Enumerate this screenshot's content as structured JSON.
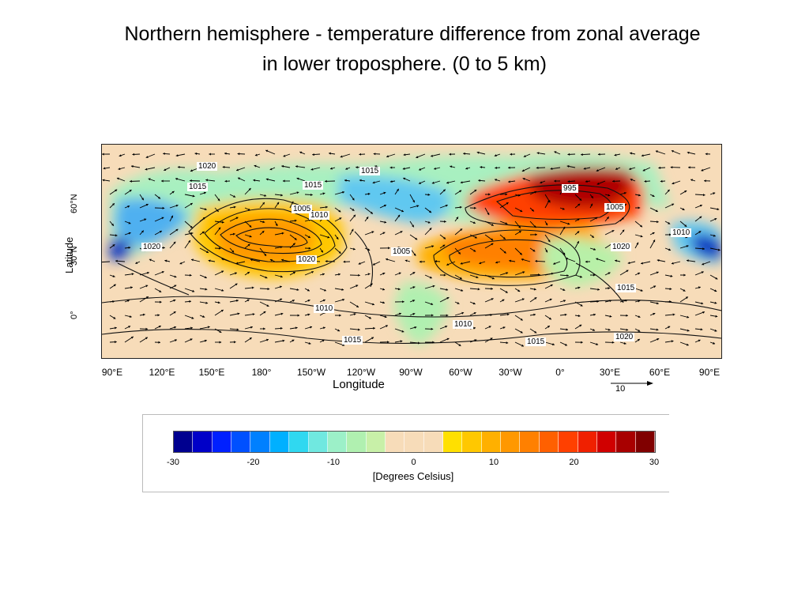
{
  "title": {
    "line1": "Northern hemisphere - temperature difference from zonal average",
    "line2": "in lower troposphere. (0 to 5 km)"
  },
  "map": {
    "ylabel": "Latitude",
    "yticks": [
      "60°N",
      "30°N",
      "0°"
    ],
    "xlabel": "Longitude",
    "xticks": [
      "90°E",
      "120°E",
      "150°E",
      "180°",
      "150°W",
      "120°W",
      "90°W",
      "60°W",
      "30°W",
      "0°",
      "30°E",
      "60°E",
      "90°E"
    ],
    "reference_vector_value": "10",
    "contour_labels": [
      "1020",
      "1015",
      "1015",
      "1005",
      "1010",
      "995",
      "1005",
      "1020",
      "1020",
      "1005",
      "1020",
      "1010",
      "1010",
      "1015",
      "1015",
      "1015",
      "1020",
      "1010",
      "1015"
    ]
  },
  "legend": {
    "ticks": [
      "-30",
      "-20",
      "-10",
      "0",
      "10",
      "20",
      "30"
    ],
    "label": "[Degrees Celsius]",
    "colors": [
      "#00008f",
      "#0000c8",
      "#0020ff",
      "#0050ff",
      "#0080ff",
      "#00b0ff",
      "#30d8f0",
      "#70e8e0",
      "#9cf0c8",
      "#b0f0b0",
      "#c8f0a8",
      "#f7dcb9",
      "#f7dcb9",
      "#f7dcb9",
      "#ffe000",
      "#ffc800",
      "#ffb000",
      "#ff9800",
      "#ff8000",
      "#ff6000",
      "#ff4000",
      "#f02000",
      "#d00000",
      "#a80000",
      "#800000"
    ]
  }
}
